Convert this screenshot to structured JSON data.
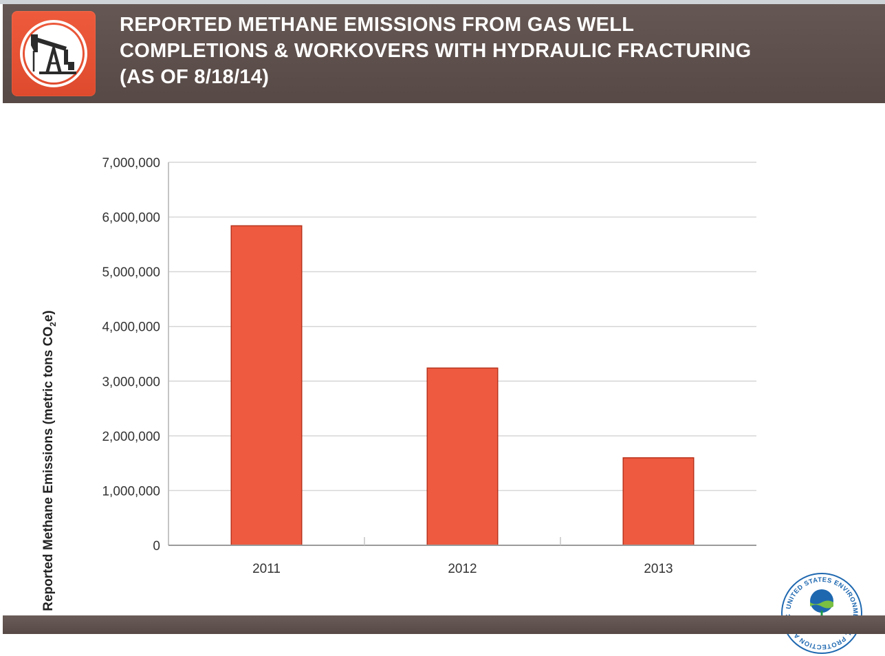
{
  "header": {
    "title_lines": [
      "REPORTED METHANE EMISSIONS FROM GAS WELL",
      "COMPLETIONS & WORKOVERS WITH HYDRAULIC FRACTURING",
      "(AS OF 8/18/14)"
    ],
    "badge_icon": "oil-pumpjack-icon"
  },
  "chart_data": {
    "type": "bar",
    "title": "REPORTED METHANE EMISSIONS FROM GAS WELL COMPLETIONS & WORKOVERS WITH HYDRAULIC FRACTURING (AS OF 8/18/14)",
    "categories": [
      "2011",
      "2012",
      "2013"
    ],
    "values": [
      5830000,
      3230000,
      1590000
    ],
    "xlabel": "",
    "ylabel_main": "Reported Methane Emissions (metric tons CO",
    "ylabel_sub": "2",
    "ylabel_end": "e)",
    "ylim": [
      0,
      7000000
    ],
    "yticks": [
      0,
      1000000,
      2000000,
      3000000,
      4000000,
      5000000,
      6000000,
      7000000
    ],
    "ytick_labels": [
      "0",
      "1,000,000",
      "2,000,000",
      "3,000,000",
      "4,000,000",
      "5,000,000",
      "6,000,000",
      "7,000,000"
    ],
    "grid": true,
    "legend": "none",
    "bar_color": "#ee5a3f"
  },
  "seal": {
    "icon": "epa-seal-icon",
    "text": "UNITED STATES ENVIRONMENTAL PROTECTION AGENCY"
  }
}
